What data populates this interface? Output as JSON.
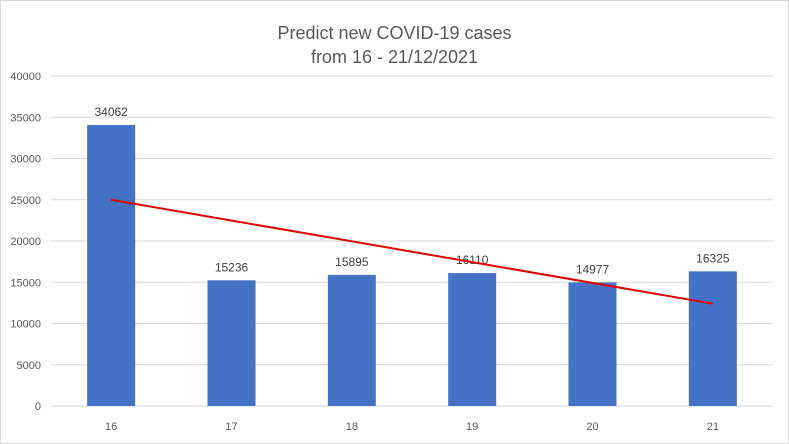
{
  "chart_data": {
    "type": "bar",
    "title_line1": "Predict new COVID-19 cases",
    "title_line2": "from 16 - 21/12/2021",
    "categories": [
      "16",
      "17",
      "18",
      "19",
      "20",
      "21"
    ],
    "series": [
      {
        "values": [
          34062,
          15236,
          15895,
          16110,
          14977,
          16325
        ]
      }
    ],
    "data_labels": [
      "34062",
      "15236",
      "15895",
      "16110",
      "14977",
      "16325"
    ],
    "trendline": {
      "type": "linear",
      "start_value": 25000,
      "end_value": 12400
    },
    "ylim": [
      0,
      40000
    ],
    "y_ticks": [
      "0",
      "5000",
      "10000",
      "15000",
      "20000",
      "25000",
      "30000",
      "35000",
      "40000"
    ],
    "grid": true,
    "legend": "none",
    "colors": {
      "bar": "#4472c4",
      "trendline": "#e00000",
      "grid": "#d9d9d9"
    }
  }
}
